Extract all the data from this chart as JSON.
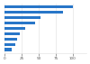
{
  "values": [
    100,
    86,
    52,
    44,
    30,
    22,
    18,
    15,
    10
  ],
  "bar_color": "#2876c8",
  "background_color": "#ffffff",
  "plot_bg_color": "#ffffff",
  "bar_height": 0.55,
  "xlim": [
    0,
    120
  ],
  "xticks": [
    0,
    25,
    50,
    75,
    100
  ],
  "grid_color": "#dddddd",
  "n_bars": 9
}
